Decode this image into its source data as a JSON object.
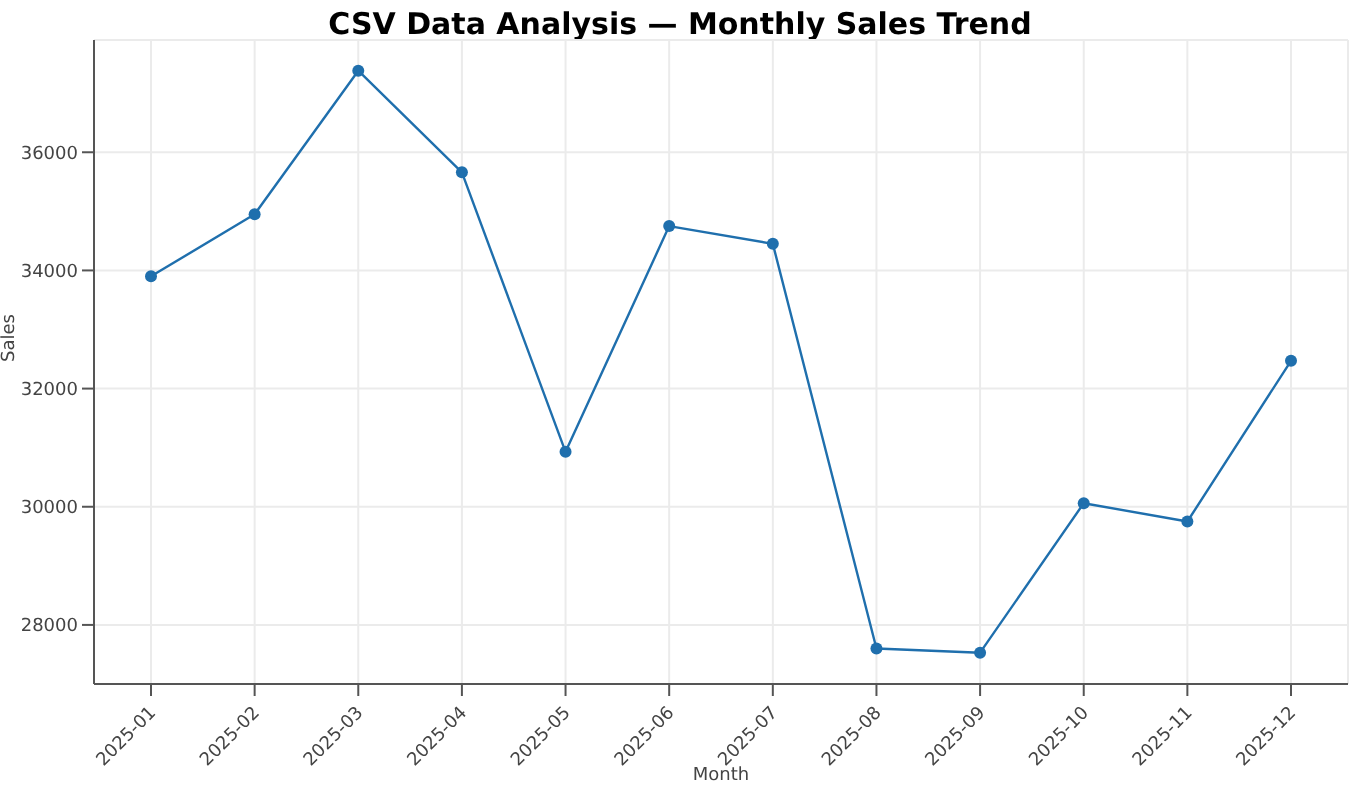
{
  "chart_data": {
    "type": "line",
    "title": "CSV Data Analysis — Monthly Sales Trend",
    "xlabel": "Month",
    "ylabel": "Sales",
    "categories": [
      "2025-01",
      "2025-02",
      "2025-03",
      "2025-04",
      "2025-05",
      "2025-06",
      "2025-07",
      "2025-08",
      "2025-09",
      "2025-10",
      "2025-11",
      "2025-12"
    ],
    "series": [
      {
        "color": "#1f6fad",
        "values": [
          33900,
          34950,
          37380,
          35660,
          30930,
          34750,
          34450,
          27600,
          27530,
          30060,
          29750,
          32470
        ]
      }
    ],
    "ylim": [
      27000,
      37900
    ],
    "yticks": [
      28000,
      30000,
      32000,
      34000,
      36000
    ],
    "grid": true,
    "marker": "circle",
    "line_style": "solid",
    "legend": false
  }
}
